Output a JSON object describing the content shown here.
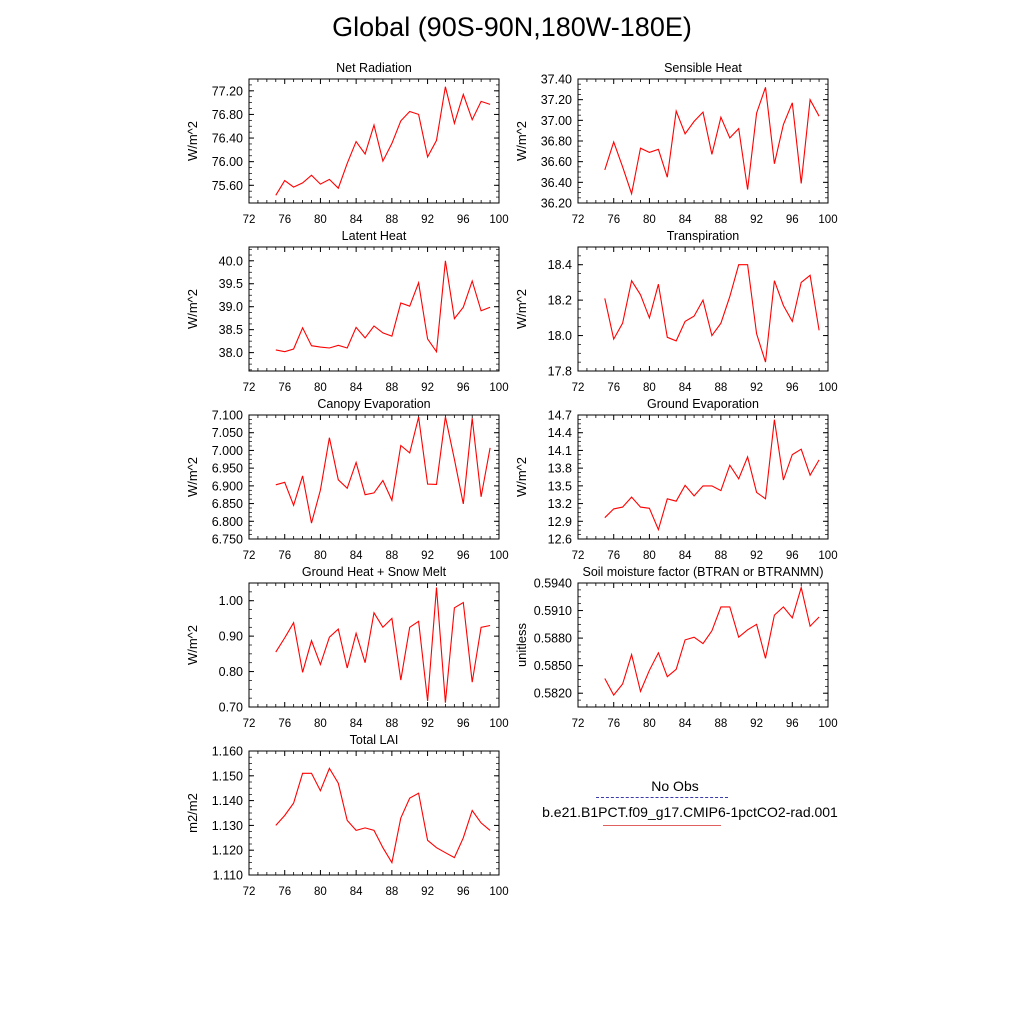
{
  "figure_title": "Global (90S-90N,180W-180E)",
  "legend": {
    "obs_label": "No Obs",
    "model_label": "b.e21.B1PCT.f09_g17.CMIP6-1pctCO2-rad.001",
    "obs_color": "#3a3aa8",
    "model_color": "#ff0000"
  },
  "chart_data": [
    {
      "type": "line",
      "title": "Net Radiation",
      "ylabel": "W/m^2",
      "xlim": [
        72,
        100
      ],
      "xticks": [
        "72",
        "76",
        "80",
        "84",
        "88",
        "92",
        "96",
        "100"
      ],
      "ylim": [
        75.3,
        77.4
      ],
      "yticks": [
        "75.60",
        "76.00",
        "76.40",
        "76.80",
        "77.20"
      ],
      "series": [
        {
          "color": "#ff0000",
          "x": [
            75,
            76,
            77,
            78,
            79,
            80,
            81,
            82,
            83,
            84,
            85,
            86,
            87,
            88,
            89,
            90,
            91,
            92,
            93,
            94,
            95,
            96,
            97,
            98,
            99
          ],
          "y": [
            75.43,
            75.68,
            75.57,
            75.64,
            75.77,
            75.62,
            75.7,
            75.55,
            75.97,
            76.34,
            76.13,
            76.62,
            76.01,
            76.31,
            76.69,
            76.85,
            76.8,
            76.08,
            76.36,
            77.27,
            76.65,
            77.14,
            76.71,
            77.02,
            76.97
          ]
        }
      ]
    },
    {
      "type": "line",
      "title": "Sensible Heat",
      "ylabel": "W/m^2",
      "xlim": [
        72,
        100
      ],
      "xticks": [
        "72",
        "76",
        "80",
        "84",
        "88",
        "92",
        "96",
        "100"
      ],
      "ylim": [
        36.2,
        37.4
      ],
      "yticks": [
        "36.20",
        "36.40",
        "36.60",
        "36.80",
        "37.00",
        "37.20",
        "37.40"
      ],
      "series": [
        {
          "color": "#ff0000",
          "x": [
            75,
            76,
            77,
            78,
            79,
            80,
            81,
            82,
            83,
            84,
            85,
            86,
            87,
            88,
            89,
            90,
            91,
            92,
            93,
            94,
            95,
            96,
            97,
            98,
            99
          ],
          "y": [
            36.52,
            36.79,
            36.55,
            36.29,
            36.73,
            36.69,
            36.72,
            36.45,
            37.09,
            36.87,
            36.99,
            37.08,
            36.67,
            37.03,
            36.83,
            36.92,
            36.33,
            37.07,
            37.32,
            36.58,
            36.96,
            37.17,
            36.39,
            37.2,
            37.04
          ]
        }
      ]
    },
    {
      "type": "line",
      "title": "Latent Heat",
      "ylabel": "W/m^2",
      "xlim": [
        72,
        100
      ],
      "xticks": [
        "72",
        "76",
        "80",
        "84",
        "88",
        "92",
        "96",
        "100"
      ],
      "ylim": [
        37.6,
        40.3
      ],
      "yticks": [
        "38.0",
        "38.5",
        "39.0",
        "39.5",
        "40.0"
      ],
      "series": [
        {
          "color": "#ff0000",
          "x": [
            75,
            76,
            77,
            78,
            79,
            80,
            81,
            82,
            83,
            84,
            85,
            86,
            87,
            88,
            89,
            90,
            91,
            92,
            93,
            94,
            95,
            96,
            97,
            98,
            99
          ],
          "y": [
            38.06,
            38.02,
            38.08,
            38.54,
            38.15,
            38.12,
            38.1,
            38.16,
            38.1,
            38.55,
            38.32,
            38.58,
            38.43,
            38.36,
            39.08,
            39.01,
            39.52,
            38.3,
            38.02,
            40.0,
            38.74,
            38.99,
            39.56,
            38.91,
            38.99
          ]
        }
      ]
    },
    {
      "type": "line",
      "title": "Transpiration",
      "ylabel": "W/m^2",
      "xlim": [
        72,
        100
      ],
      "xticks": [
        "72",
        "76",
        "80",
        "84",
        "88",
        "92",
        "96",
        "100"
      ],
      "ylim": [
        17.8,
        18.5
      ],
      "yticks": [
        "17.8",
        "18.0",
        "18.2",
        "18.4"
      ],
      "series": [
        {
          "color": "#ff0000",
          "x": [
            75,
            76,
            77,
            78,
            79,
            80,
            81,
            82,
            83,
            84,
            85,
            86,
            87,
            88,
            89,
            90,
            91,
            92,
            93,
            94,
            95,
            96,
            97,
            98,
            99
          ],
          "y": [
            18.21,
            17.98,
            18.07,
            18.31,
            18.23,
            18.1,
            18.29,
            17.99,
            17.97,
            18.08,
            18.11,
            18.2,
            18.0,
            18.07,
            18.22,
            18.4,
            18.4,
            18.01,
            17.85,
            18.31,
            18.17,
            18.08,
            18.3,
            18.34,
            18.03
          ]
        }
      ]
    },
    {
      "type": "line",
      "title": "Canopy Evaporation",
      "ylabel": "W/m^2",
      "xlim": [
        72,
        100
      ],
      "xticks": [
        "72",
        "76",
        "80",
        "84",
        "88",
        "92",
        "96",
        "100"
      ],
      "ylim": [
        6.75,
        7.1
      ],
      "yticks": [
        "6.750",
        "6.800",
        "6.850",
        "6.900",
        "6.950",
        "7.000",
        "7.050",
        "7.100"
      ],
      "series": [
        {
          "color": "#ff0000",
          "x": [
            75,
            76,
            77,
            78,
            79,
            80,
            81,
            82,
            83,
            84,
            85,
            86,
            87,
            88,
            89,
            90,
            91,
            92,
            93,
            94,
            95,
            96,
            97,
            98,
            99
          ],
          "y": [
            6.903,
            6.91,
            6.845,
            6.928,
            6.795,
            6.888,
            7.036,
            6.917,
            6.893,
            6.966,
            6.875,
            6.88,
            6.915,
            6.859,
            7.014,
            6.993,
            7.094,
            6.905,
            6.904,
            7.095,
            6.975,
            6.849,
            7.091,
            6.869,
            7.007
          ]
        }
      ]
    },
    {
      "type": "line",
      "title": "Ground Evaporation",
      "ylabel": "W/m^2",
      "xlim": [
        72,
        100
      ],
      "xticks": [
        "72",
        "76",
        "80",
        "84",
        "88",
        "92",
        "96",
        "100"
      ],
      "ylim": [
        12.6,
        14.7
      ],
      "yticks": [
        "12.6",
        "12.9",
        "13.2",
        "13.5",
        "13.8",
        "14.1",
        "14.4",
        "14.7"
      ],
      "series": [
        {
          "color": "#ff0000",
          "x": [
            75,
            76,
            77,
            78,
            79,
            80,
            81,
            82,
            83,
            84,
            85,
            86,
            87,
            88,
            89,
            90,
            91,
            92,
            93,
            94,
            95,
            96,
            97,
            98,
            99
          ],
          "y": [
            12.96,
            13.11,
            13.14,
            13.31,
            13.14,
            13.12,
            12.76,
            13.28,
            13.24,
            13.51,
            13.33,
            13.5,
            13.5,
            13.42,
            13.85,
            13.62,
            13.99,
            13.39,
            13.28,
            14.62,
            13.6,
            14.03,
            14.12,
            13.68,
            13.94
          ]
        }
      ]
    },
    {
      "type": "line",
      "title": "Ground Heat + Snow Melt",
      "ylabel": "W/m^2",
      "xlim": [
        72,
        100
      ],
      "xticks": [
        "72",
        "76",
        "80",
        "84",
        "88",
        "92",
        "96",
        "100"
      ],
      "ylim": [
        0.7,
        1.05
      ],
      "yticks": [
        "0.70",
        "0.80",
        "0.90",
        "1.00"
      ],
      "series": [
        {
          "color": "#ff0000",
          "x": [
            75,
            76,
            77,
            78,
            79,
            80,
            81,
            82,
            83,
            84,
            85,
            86,
            87,
            88,
            89,
            90,
            91,
            92,
            93,
            94,
            95,
            96,
            97,
            98,
            99
          ],
          "y": [
            0.855,
            0.895,
            0.938,
            0.798,
            0.887,
            0.82,
            0.897,
            0.92,
            0.81,
            0.908,
            0.825,
            0.966,
            0.925,
            0.95,
            0.776,
            0.925,
            0.942,
            0.717,
            1.037,
            0.712,
            0.98,
            0.995,
            0.77,
            0.925,
            0.93
          ]
        }
      ]
    },
    {
      "type": "line",
      "title": "Soil moisture factor (BTRAN or BTRANMN)",
      "ylabel": "unitless",
      "xlim": [
        72,
        100
      ],
      "xticks": [
        "72",
        "76",
        "80",
        "84",
        "88",
        "92",
        "96",
        "100"
      ],
      "ylim": [
        0.5805,
        0.594
      ],
      "yticks": [
        "0.5820",
        "0.5850",
        "0.5880",
        "0.5910",
        "0.5940"
      ],
      "series": [
        {
          "color": "#ff0000",
          "x": [
            75,
            76,
            77,
            78,
            79,
            80,
            81,
            82,
            83,
            84,
            85,
            86,
            87,
            88,
            89,
            90,
            91,
            92,
            93,
            94,
            95,
            96,
            97,
            98,
            99
          ],
          "y": [
            0.5836,
            0.5818,
            0.583,
            0.5862,
            0.5822,
            0.5845,
            0.5864,
            0.5838,
            0.5846,
            0.5878,
            0.5881,
            0.5874,
            0.5888,
            0.5914,
            0.5914,
            0.5881,
            0.5889,
            0.5895,
            0.5858,
            0.5905,
            0.5914,
            0.5902,
            0.5935,
            0.5893,
            0.5903
          ]
        }
      ]
    },
    {
      "type": "line",
      "title": "Total LAI",
      "ylabel": "m2/m2",
      "xlim": [
        72,
        100
      ],
      "xticks": [
        "72",
        "76",
        "80",
        "84",
        "88",
        "92",
        "96",
        "100"
      ],
      "ylim": [
        1.11,
        1.16
      ],
      "yticks": [
        "1.110",
        "1.120",
        "1.130",
        "1.140",
        "1.150",
        "1.160"
      ],
      "series": [
        {
          "color": "#ff0000",
          "x": [
            75,
            76,
            77,
            78,
            79,
            80,
            81,
            82,
            83,
            84,
            85,
            86,
            87,
            88,
            89,
            90,
            91,
            92,
            93,
            94,
            95,
            96,
            97,
            98,
            99
          ],
          "y": [
            1.13,
            1.134,
            1.139,
            1.151,
            1.151,
            1.144,
            1.153,
            1.147,
            1.132,
            1.128,
            1.129,
            1.128,
            1.121,
            1.115,
            1.133,
            1.141,
            1.143,
            1.124,
            1.121,
            1.119,
            1.117,
            1.125,
            1.136,
            1.131,
            1.128
          ]
        }
      ]
    }
  ]
}
